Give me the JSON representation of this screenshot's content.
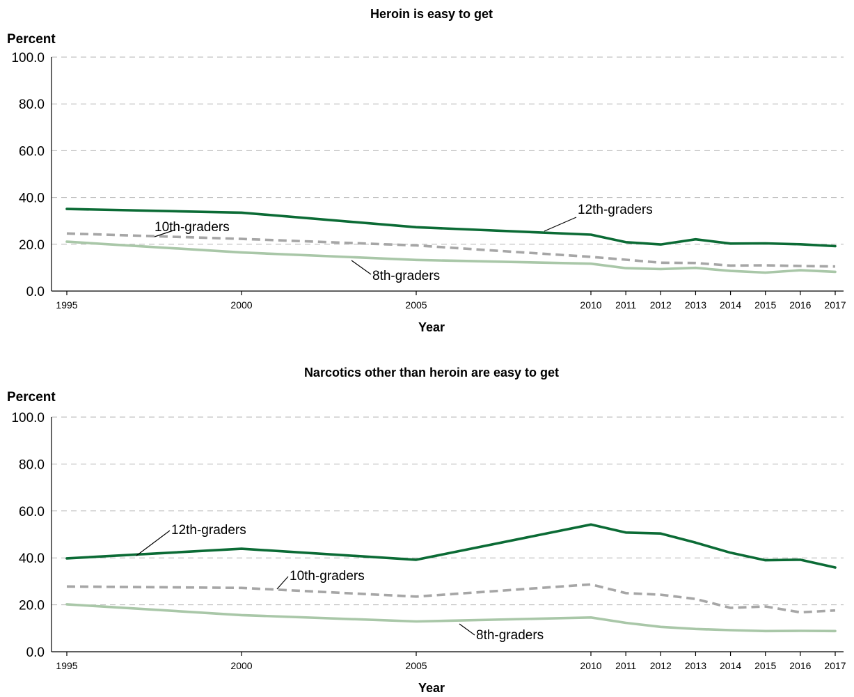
{
  "chart_data": [
    {
      "type": "line",
      "title": "Heroin is easy to get",
      "ylabel": "Percent",
      "xlabel": "Year",
      "ylim": [
        0,
        100
      ],
      "yticks": [
        "0.0",
        "20.0",
        "40.0",
        "60.0",
        "80.0",
        "100.0"
      ],
      "x": [
        1995,
        2000,
        2005,
        2010,
        2011,
        2012,
        2013,
        2014,
        2015,
        2016,
        2017
      ],
      "xticks": [
        "1995",
        "2000",
        "2005",
        "2010",
        "2011",
        "2012",
        "2013",
        "2014",
        "2015",
        "2016",
        "2017"
      ],
      "grid": true,
      "series": [
        {
          "name": "12th-graders",
          "color": "#0b6b35",
          "style": "solid",
          "values": [
            35.1,
            33.5,
            27.3,
            24.1,
            20.9,
            19.9,
            22.1,
            20.3,
            20.4,
            20.0,
            19.2
          ]
        },
        {
          "name": "10th-graders",
          "color": "#a6a6a6",
          "style": "dashed",
          "values": [
            24.6,
            22.3,
            19.5,
            14.6,
            13.4,
            12.1,
            12.0,
            10.9,
            11.0,
            10.7,
            10.5
          ]
        },
        {
          "name": "8th-graders",
          "color": "#a9c7a8",
          "style": "solid",
          "values": [
            21.1,
            16.5,
            13.3,
            11.7,
            9.8,
            9.4,
            9.9,
            8.6,
            7.9,
            8.9,
            8.2
          ]
        }
      ],
      "annotations": [
        {
          "text": "12th-graders",
          "series": 0
        },
        {
          "text": "10th-graders",
          "series": 1
        },
        {
          "text": "8th-graders",
          "series": 2
        }
      ]
    },
    {
      "type": "line",
      "title": "Narcotics other than heroin are easy to get",
      "ylabel": "Percent",
      "xlabel": "Year",
      "ylim": [
        0,
        100
      ],
      "yticks": [
        "0.0",
        "20.0",
        "40.0",
        "60.0",
        "80.0",
        "100.0"
      ],
      "x": [
        1995,
        2000,
        2005,
        2010,
        2011,
        2012,
        2013,
        2014,
        2015,
        2016,
        2017
      ],
      "xticks": [
        "1995",
        "2000",
        "2005",
        "2010",
        "2011",
        "2012",
        "2013",
        "2014",
        "2015",
        "2016",
        "2017"
      ],
      "grid": true,
      "series": [
        {
          "name": "12th-graders",
          "color": "#0b6b35",
          "style": "solid",
          "values": [
            39.8,
            43.9,
            39.2,
            54.2,
            50.8,
            50.4,
            46.5,
            42.2,
            39.0,
            39.2,
            35.9
          ]
        },
        {
          "name": "10th-graders",
          "color": "#a6a6a6",
          "style": "dashed",
          "values": [
            27.8,
            27.2,
            23.5,
            28.7,
            25.0,
            24.3,
            22.5,
            18.7,
            19.3,
            16.8,
            17.6
          ]
        },
        {
          "name": "8th-graders",
          "color": "#a9c7a8",
          "style": "solid",
          "values": [
            20.2,
            15.6,
            12.9,
            14.6,
            12.3,
            10.6,
            9.7,
            9.2,
            8.8,
            8.9,
            8.8
          ]
        }
      ],
      "annotations": [
        {
          "text": "12th-graders",
          "series": 0
        },
        {
          "text": "10th-graders",
          "series": 1
        },
        {
          "text": "8th-graders",
          "series": 2
        }
      ]
    }
  ]
}
